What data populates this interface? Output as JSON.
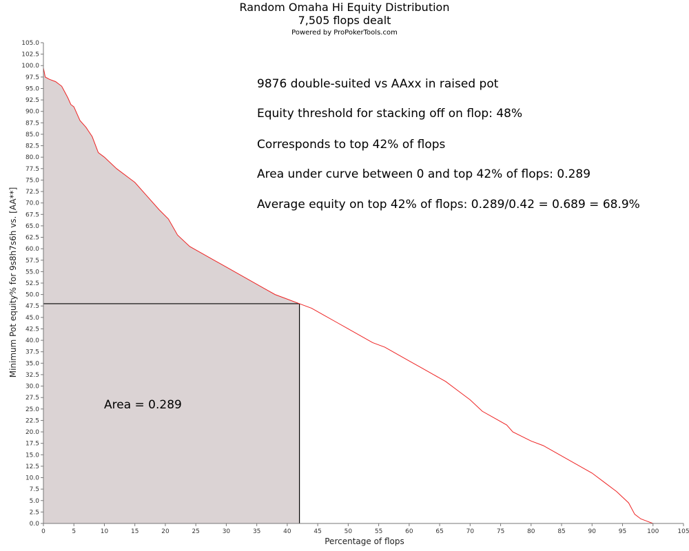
{
  "chart_data": {
    "type": "area",
    "title": "Random Omaha Hi Equity Distribution",
    "subtitle": "7,505 flops dealt",
    "credit": "Powered by ProPokerTools.com",
    "xlabel": "Percentage of flops",
    "ylabel": "Minimum Pot equity% for 9s8h7s6h vs. [AA**]",
    "xlim": [
      0,
      105
    ],
    "ylim": [
      0,
      105
    ],
    "x_ticks": [
      0,
      5,
      10,
      15,
      20,
      25,
      30,
      35,
      40,
      45,
      50,
      55,
      60,
      65,
      70,
      75,
      80,
      85,
      90,
      95,
      100,
      105
    ],
    "y_ticks": [
      0.0,
      2.5,
      5.0,
      7.5,
      10.0,
      12.5,
      15.0,
      17.5,
      20.0,
      22.5,
      25.0,
      27.5,
      30.0,
      32.5,
      35.0,
      37.5,
      40.0,
      42.5,
      45.0,
      47.5,
      50.0,
      52.5,
      55.0,
      57.5,
      60.0,
      62.5,
      65.0,
      67.5,
      70.0,
      72.5,
      75.0,
      77.5,
      80.0,
      82.5,
      85.0,
      87.5,
      90.0,
      92.5,
      95.0,
      97.5,
      100.0,
      102.5,
      105.0
    ],
    "grid": false,
    "line_color": "#ee2222",
    "fill_color": "#dbd3d4",
    "series": [
      {
        "x": [
          0,
          0.3,
          1,
          2,
          3,
          4,
          4.5,
          5,
          6,
          7,
          8,
          9,
          10,
          12,
          14,
          15,
          17,
          19,
          20.5,
          22,
          24,
          26,
          28,
          30,
          32,
          34,
          36,
          38,
          40,
          42,
          44,
          46,
          48,
          50,
          52,
          54,
          56,
          58,
          60,
          62,
          64,
          66,
          68,
          70,
          72,
          74,
          76,
          77,
          80,
          82,
          84,
          86,
          88,
          90,
          92,
          94,
          96,
          97,
          98,
          99,
          100
        ],
        "y": [
          99.5,
          97.5,
          97,
          96.5,
          95.5,
          93,
          91.5,
          91,
          88,
          86.5,
          84.5,
          81,
          80,
          77.5,
          75.5,
          74.5,
          71.5,
          68.5,
          66.5,
          63,
          60.5,
          59,
          57.5,
          56,
          54.5,
          53,
          51.5,
          50,
          49,
          48,
          47,
          45.5,
          44,
          42.5,
          41,
          39.5,
          38.5,
          37,
          35.5,
          34,
          32.5,
          31,
          29,
          27,
          24.5,
          23,
          21.5,
          20,
          18,
          17,
          15.5,
          14,
          12.5,
          11,
          9,
          7,
          4.5,
          2,
          1,
          0.5,
          0
        ]
      }
    ],
    "threshold": {
      "x": 42,
      "y": 48
    },
    "annotations": [
      "9876 double-suited vs AAxx in raised pot",
      "Equity threshold for stacking off on flop: 48%",
      "Corresponds to top 42% of flops",
      "Area under curve between 0 and top 42% of flops: 0.289",
      "Average equity on top 42% of flops: 0.289/0.42 = 0.689 = 68.9%"
    ],
    "area_label": "Area = 0.289"
  }
}
